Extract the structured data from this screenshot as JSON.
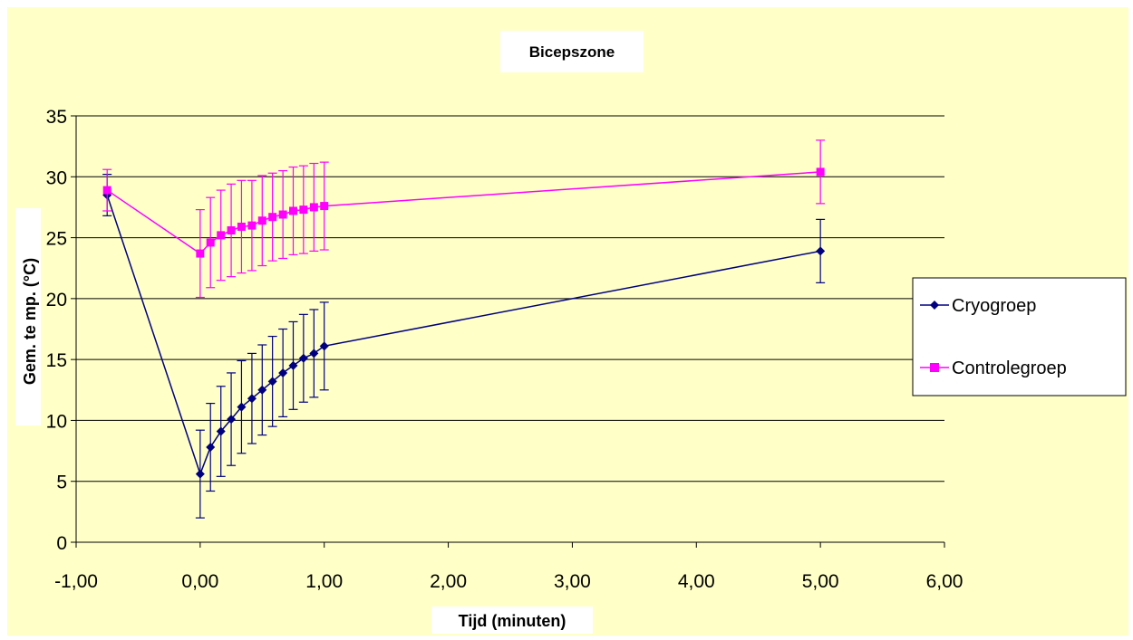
{
  "chart_data": {
    "type": "line",
    "title": "Bicepszone",
    "xlabel": "Tijd (minuten)",
    "ylabel": "Gem. te mp. (°C)",
    "xlim": [
      -1,
      6
    ],
    "ylim": [
      0,
      35
    ],
    "x_ticks": [
      -1,
      0,
      1,
      2,
      3,
      4,
      5,
      6
    ],
    "x_tick_labels": [
      "-1,00",
      "0,00",
      "1,00",
      "2,00",
      "3,00",
      "4,00",
      "5,00",
      "6,00"
    ],
    "y_ticks": [
      0,
      5,
      10,
      15,
      20,
      25,
      30,
      35
    ],
    "y_tick_labels": [
      "0",
      "5",
      "10",
      "15",
      "20",
      "25",
      "30",
      "35"
    ],
    "grid": "horizontal",
    "legend": "right",
    "colors": {
      "background": "#ffffc8",
      "plot_area": "#ffffc8",
      "gridline": "#000000",
      "cryo": "#000080",
      "controle": "#ff00ff"
    },
    "series": [
      {
        "name": "Cryogroep",
        "color": "#000080",
        "marker": "diamond",
        "x": [
          -0.75,
          0,
          0.083,
          0.167,
          0.25,
          0.333,
          0.417,
          0.5,
          0.583,
          0.667,
          0.75,
          0.833,
          0.917,
          1.0,
          5.0
        ],
        "y": [
          28.5,
          5.6,
          7.8,
          9.1,
          10.1,
          11.1,
          11.8,
          12.5,
          13.2,
          13.9,
          14.5,
          15.1,
          15.5,
          16.1,
          23.9
        ],
        "err": [
          1.7,
          3.6,
          3.6,
          3.7,
          3.8,
          3.8,
          3.7,
          3.7,
          3.7,
          3.6,
          3.6,
          3.6,
          3.6,
          3.6,
          2.6
        ]
      },
      {
        "name": "Controlegroep",
        "color": "#ff00ff",
        "marker": "square",
        "x": [
          -0.75,
          0,
          0.083,
          0.167,
          0.25,
          0.333,
          0.417,
          0.5,
          0.583,
          0.667,
          0.75,
          0.833,
          0.917,
          1.0,
          5.0
        ],
        "y": [
          28.9,
          23.7,
          24.6,
          25.2,
          25.6,
          25.9,
          26.0,
          26.4,
          26.7,
          26.9,
          27.2,
          27.3,
          27.5,
          27.6,
          30.4
        ],
        "err": [
          1.7,
          3.6,
          3.7,
          3.7,
          3.8,
          3.8,
          3.7,
          3.7,
          3.6,
          3.6,
          3.6,
          3.6,
          3.6,
          3.6,
          2.6
        ]
      }
    ]
  }
}
